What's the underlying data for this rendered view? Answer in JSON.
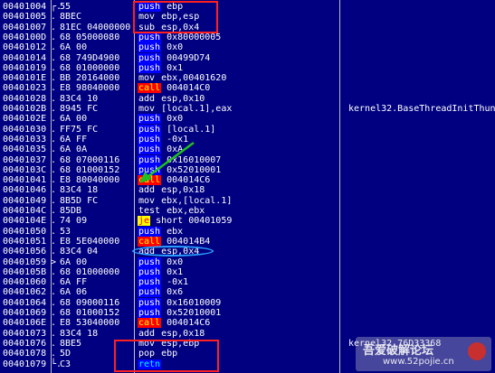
{
  "rows": [
    {
      "addr": "00401004",
      "mark": "┌.",
      "hex": "55",
      "mn": "push",
      "op": "ebp",
      "hl": "push"
    },
    {
      "addr": "00401005",
      "mark": ".",
      "hex": "8BEC",
      "mn": "mov",
      "op": "ebp,esp"
    },
    {
      "addr": "00401007",
      "mark": ".",
      "hex": "81EC 04000000",
      "mn": "sub",
      "op": "esp,0x4"
    },
    {
      "addr": "0040100D",
      "mark": ".",
      "hex": "68 05000080",
      "mn": "push",
      "op": "0x80000005",
      "hl": "push"
    },
    {
      "addr": "00401012",
      "mark": ".",
      "hex": "6A 00",
      "mn": "push",
      "op": "0x0",
      "hl": "push"
    },
    {
      "addr": "00401014",
      "mark": ".",
      "hex": "68 749D4900",
      "mn": "push",
      "op": "00499D74",
      "hl": "push"
    },
    {
      "addr": "00401019",
      "mark": ".",
      "hex": "68 01000000",
      "mn": "push",
      "op": "0x1",
      "hl": "push"
    },
    {
      "addr": "0040101E",
      "mark": ".",
      "hex": "BB 20164000",
      "mn": "mov",
      "op": "ebx,00401620"
    },
    {
      "addr": "00401023",
      "mark": ".",
      "hex": "E8 98040000",
      "mn": "call",
      "op": "004014C0",
      "hl": "call"
    },
    {
      "addr": "00401028",
      "mark": ".",
      "hex": "83C4 10",
      "mn": "add",
      "op": "esp,0x10"
    },
    {
      "addr": "0040102B",
      "mark": ".",
      "hex": "8945 FC",
      "mn": "mov",
      "op": "[local.1],eax",
      "cmt": "kernel32.BaseThreadInitThunk"
    },
    {
      "addr": "0040102E",
      "mark": ".",
      "hex": "6A 00",
      "mn": "push",
      "op": "0x0",
      "hl": "push"
    },
    {
      "addr": "00401030",
      "mark": ".",
      "hex": "FF75 FC",
      "mn": "push",
      "op": "[local.1]",
      "hl": "push"
    },
    {
      "addr": "00401033",
      "mark": ".",
      "hex": "6A FF",
      "mn": "push",
      "op": "-0x1",
      "hl": "push"
    },
    {
      "addr": "00401035",
      "mark": ".",
      "hex": "6A 0A",
      "mn": "push",
      "op": "0xA",
      "hl": "push"
    },
    {
      "addr": "00401037",
      "mark": ".",
      "hex": "68 07000116",
      "mn": "push",
      "op": "0x16010007",
      "hl": "push"
    },
    {
      "addr": "0040103C",
      "mark": ".",
      "hex": "68 01000152",
      "mn": "push",
      "op": "0x52010001",
      "hl": "push"
    },
    {
      "addr": "00401041",
      "mark": ".",
      "hex": "E8 80040000",
      "mn": "call",
      "op": "004014C6",
      "hl": "call"
    },
    {
      "addr": "00401046",
      "mark": ".",
      "hex": "83C4 18",
      "mn": "add",
      "op": "esp,0x18"
    },
    {
      "addr": "00401049",
      "mark": ".",
      "hex": "8B5D FC",
      "mn": "mov",
      "op": "ebx,[local.1]"
    },
    {
      "addr": "0040104C",
      "mark": ".",
      "hex": "85DB",
      "mn": "test",
      "op": "ebx,ebx"
    },
    {
      "addr": "0040104E",
      "mark": ".",
      "hex": "74 09",
      "mn": "je",
      "op": "short 00401059",
      "hl": "je"
    },
    {
      "addr": "00401050",
      "mark": ".",
      "hex": "53",
      "mn": "push",
      "op": "ebx",
      "hl": "push"
    },
    {
      "addr": "00401051",
      "mark": ".",
      "hex": "E8 5E040000",
      "mn": "call",
      "op": "004014B4",
      "hl": "call"
    },
    {
      "addr": "00401056",
      "mark": ".",
      "hex": "83C4 04",
      "mn": "add",
      "op": "esp,0x4"
    },
    {
      "addr": "00401059",
      "mark": ">",
      "hex": "6A 00",
      "mn": "push",
      "op": "0x0",
      "hl": "push"
    },
    {
      "addr": "0040105B",
      "mark": ".",
      "hex": "68 01000000",
      "mn": "push",
      "op": "0x1",
      "hl": "push"
    },
    {
      "addr": "00401060",
      "mark": ".",
      "hex": "6A FF",
      "mn": "push",
      "op": "-0x1",
      "hl": "push"
    },
    {
      "addr": "00401062",
      "mark": ".",
      "hex": "6A 06",
      "mn": "push",
      "op": "0x6",
      "hl": "push"
    },
    {
      "addr": "00401064",
      "mark": ".",
      "hex": "68 09000116",
      "mn": "push",
      "op": "0x16010009",
      "hl": "push"
    },
    {
      "addr": "00401069",
      "mark": ".",
      "hex": "68 01000152",
      "mn": "push",
      "op": "0x52010001",
      "hl": "push"
    },
    {
      "addr": "0040106E",
      "mark": ".",
      "hex": "E8 53040000",
      "mn": "call",
      "op": "004014C6",
      "hl": "call"
    },
    {
      "addr": "00401073",
      "mark": ".",
      "hex": "83C4 18",
      "mn": "add",
      "op": "esp,0x18"
    },
    {
      "addr": "00401076",
      "mark": ".",
      "hex": "8BE5",
      "mn": "mov",
      "op": "esp,ebp",
      "cmt": "kernel32.76D33368"
    },
    {
      "addr": "00401078",
      "mark": ".",
      "hex": "5D",
      "mn": "pop",
      "op": "ebp"
    },
    {
      "addr": "00401079",
      "mark": "└.",
      "hex": "C3",
      "mn": "retn",
      "op": "",
      "hl": "ret"
    }
  ],
  "watermark": {
    "title": "吾爱破解论坛",
    "url": "www.52pojie.cn"
  }
}
